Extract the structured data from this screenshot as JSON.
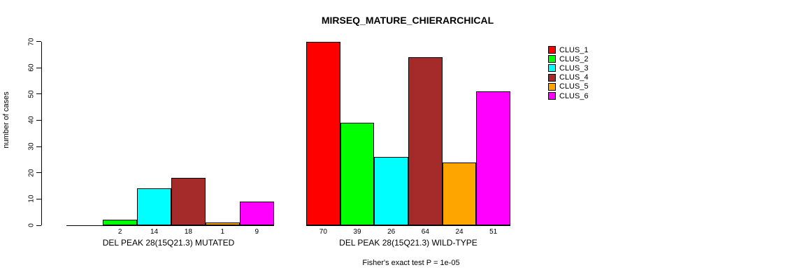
{
  "chart_data": {
    "type": "bar",
    "title": "MIRSEQ_MATURE_CHIERARCHICAL",
    "ylabel": "number of cases",
    "xlabel": "",
    "ylim": [
      0,
      70
    ],
    "yticks": [
      0,
      10,
      20,
      30,
      40,
      50,
      60,
      70
    ],
    "grid": false,
    "legend_position": "right",
    "series_colors": [
      "#FF0000",
      "#00FF00",
      "#00FFFF",
      "#A52A2A",
      "#FFA500",
      "#FF00FF"
    ],
    "legend": [
      "CLUS_1",
      "CLUS_2",
      "CLUS_3",
      "CLUS_4",
      "CLUS_5",
      "CLUS_6"
    ],
    "groups": [
      {
        "label": "DEL PEAK 28(15Q21.3) MUTATED",
        "values": [
          0,
          2,
          14,
          18,
          1,
          9
        ],
        "bar_labels": [
          "",
          "2",
          "14",
          "18",
          "1",
          "9"
        ]
      },
      {
        "label": "DEL PEAK 28(15Q21.3) WILD-TYPE",
        "values": [
          70,
          39,
          26,
          64,
          24,
          51
        ],
        "bar_labels": [
          "70",
          "39",
          "26",
          "64",
          "24",
          "51"
        ]
      }
    ],
    "caption": "Fisher's exact test P = 1e-05"
  }
}
